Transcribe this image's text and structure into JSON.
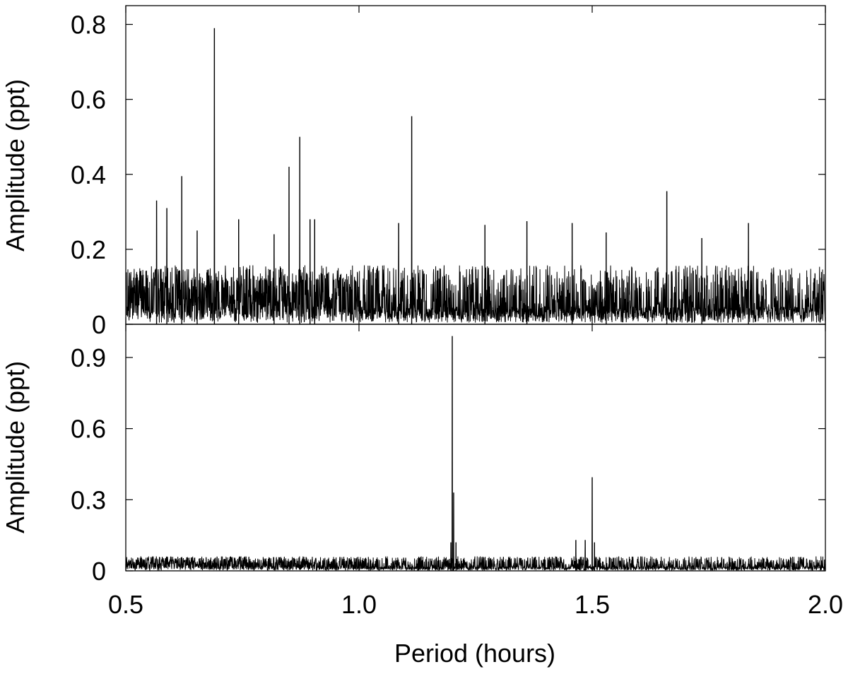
{
  "chart_data": [
    {
      "type": "line",
      "panel": "top",
      "title": "",
      "xlabel": "",
      "ylabel": "Amplitude (ppt)",
      "xlim": [
        0.5,
        2.0
      ],
      "ylim": [
        0,
        0.85
      ],
      "xticks": [
        0.5,
        1.0,
        1.5,
        2.0
      ],
      "yticks": [
        {
          "value": 0,
          "label": "0"
        },
        {
          "value": 0.2,
          "label": "0.2"
        },
        {
          "value": 0.4,
          "label": "0.4"
        },
        {
          "value": 0.6,
          "label": "0.6"
        },
        {
          "value": 0.8,
          "label": "0.8"
        }
      ],
      "grid": false,
      "series": [
        {
          "peaks": [
            {
              "x": 0.566,
              "y": 0.33
            },
            {
              "x": 0.588,
              "y": 0.31
            },
            {
              "x": 0.62,
              "y": 0.395
            },
            {
              "x": 0.653,
              "y": 0.25
            },
            {
              "x": 0.69,
              "y": 0.79
            },
            {
              "x": 0.742,
              "y": 0.28
            },
            {
              "x": 0.818,
              "y": 0.24
            },
            {
              "x": 0.85,
              "y": 0.42
            },
            {
              "x": 0.873,
              "y": 0.5
            },
            {
              "x": 0.895,
              "y": 0.28
            },
            {
              "x": 0.905,
              "y": 0.28
            },
            {
              "x": 1.085,
              "y": 0.27
            },
            {
              "x": 1.113,
              "y": 0.555
            },
            {
              "x": 1.27,
              "y": 0.265
            },
            {
              "x": 1.36,
              "y": 0.275
            },
            {
              "x": 1.457,
              "y": 0.27
            },
            {
              "x": 1.53,
              "y": 0.245
            },
            {
              "x": 1.66,
              "y": 0.355
            },
            {
              "x": 1.735,
              "y": 0.23
            },
            {
              "x": 1.835,
              "y": 0.27
            }
          ],
          "noise_level": 0.09
        }
      ]
    },
    {
      "type": "line",
      "panel": "bottom",
      "title": "",
      "xlabel": "Period (hours)",
      "ylabel": "Amplitude (ppt)",
      "xlim": [
        0.5,
        2.0
      ],
      "ylim": [
        0,
        1.04
      ],
      "xticks": [
        {
          "value": 0.5,
          "label": "0.5"
        },
        {
          "value": 1.0,
          "label": "1.0"
        },
        {
          "value": 1.5,
          "label": "1.5"
        },
        {
          "value": 2.0,
          "label": "2.0"
        }
      ],
      "yticks": [
        {
          "value": 0,
          "label": "0"
        },
        {
          "value": 0.3,
          "label": "0.3"
        },
        {
          "value": 0.6,
          "label": "0.6"
        },
        {
          "value": 0.9,
          "label": "0.9"
        }
      ],
      "grid": false,
      "series": [
        {
          "peaks": [
            {
              "x": 1.197,
              "y": 0.12
            },
            {
              "x": 1.2,
              "y": 0.99
            },
            {
              "x": 1.203,
              "y": 0.33
            },
            {
              "x": 1.208,
              "y": 0.12
            },
            {
              "x": 1.465,
              "y": 0.13
            },
            {
              "x": 1.485,
              "y": 0.13
            },
            {
              "x": 1.5,
              "y": 0.395
            },
            {
              "x": 1.505,
              "y": 0.12
            }
          ],
          "noise_level": 0.035
        }
      ]
    }
  ]
}
